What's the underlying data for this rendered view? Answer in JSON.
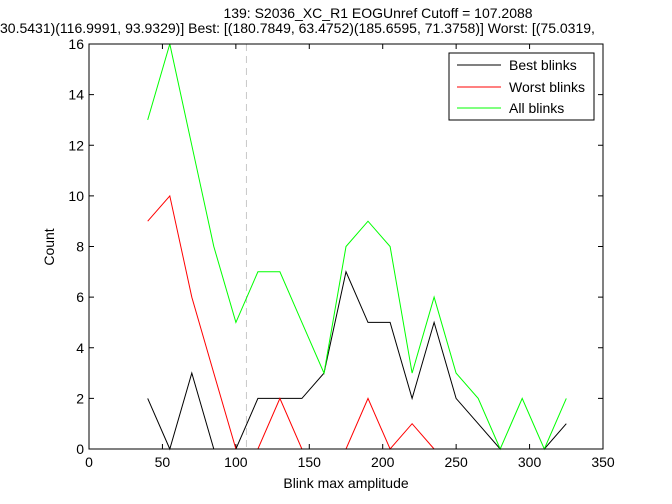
{
  "chart_data": {
    "type": "line",
    "title_lines": [
      "139: S2036_XC_R1 EOGUnref Cutoff = 107.2088",
      "30.5431)(116.9991, 93.9329)] Best: [(180.7849, 63.4752)(185.6595, 71.3758)] Worst: [(75.0319,"
    ],
    "xlabel": "Blink max amplitude",
    "ylabel": "Count",
    "xlim": [
      0,
      350
    ],
    "ylim": [
      0,
      16
    ],
    "xticks": [
      0,
      50,
      100,
      150,
      200,
      250,
      300,
      350
    ],
    "yticks": [
      0,
      2,
      4,
      6,
      8,
      10,
      12,
      14,
      16
    ],
    "cutoff": 107.2088,
    "legend_position": "top-right",
    "series": [
      {
        "name": "Best blinks",
        "color": "#000000",
        "x": [
          40,
          55,
          70,
          85,
          100,
          115,
          130,
          145,
          160,
          175,
          190,
          205,
          220,
          235,
          250,
          265,
          280,
          295,
          310,
          325
        ],
        "y": [
          2,
          0,
          3,
          0,
          0,
          2,
          2,
          2,
          3,
          7,
          5,
          5,
          2,
          5,
          2,
          1,
          0,
          0,
          0,
          1
        ]
      },
      {
        "name": "Worst blinks",
        "color": "#ff0000",
        "x": [
          40,
          55,
          70,
          85,
          100,
          115,
          130,
          145,
          160,
          175,
          190,
          205,
          220,
          235
        ],
        "y": [
          9,
          10,
          6,
          3,
          0,
          0,
          2,
          0,
          0,
          0,
          2,
          0,
          1,
          0
        ]
      },
      {
        "name": "All blinks",
        "color": "#00ff00",
        "x": [
          40,
          55,
          70,
          85,
          100,
          115,
          130,
          145,
          160,
          175,
          190,
          205,
          220,
          235,
          250,
          265,
          280,
          295,
          310,
          325
        ],
        "y": [
          13,
          16,
          12,
          8,
          5,
          7,
          7,
          5,
          3,
          8,
          9,
          8,
          3,
          6,
          3,
          2,
          0,
          2,
          0,
          2
        ]
      }
    ]
  }
}
